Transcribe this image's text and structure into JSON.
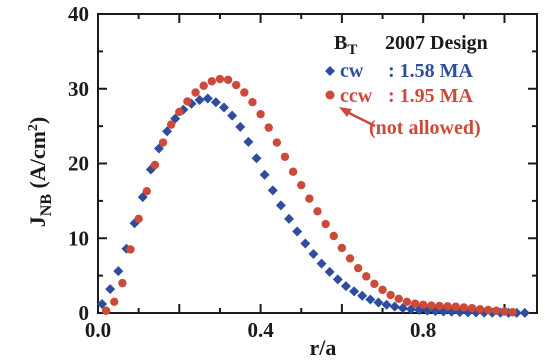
{
  "chart_data": {
    "type": "scatter",
    "xlabel": "r/a",
    "ylabel_main": "J",
    "ylabel_sub": "NB",
    "ylabel_units_prefix": " (A/cm",
    "ylabel_units_exp": "2",
    "ylabel_units_suffix": ")",
    "xlim": [
      0.0,
      1.08
    ],
    "ylim": [
      0,
      40
    ],
    "xticks": [
      "0.0",
      "0.4",
      "0.8"
    ],
    "yticks": [
      "0",
      "10",
      "20",
      "30",
      "40"
    ],
    "legend": {
      "field_main": "B",
      "field_sub": "T",
      "design": "2007 Design",
      "cw_label": "cw",
      "cw_value": ":  1.58 MA",
      "ccw_label": "ccw",
      "ccw_value": ":  1.95 MA"
    },
    "annotation": "(not allowed)",
    "series": [
      {
        "name": "cw",
        "color": "#2e4d9e",
        "marker": "diamond",
        "x": [
          0.01,
          0.03,
          0.05,
          0.07,
          0.09,
          0.11,
          0.13,
          0.15,
          0.17,
          0.19,
          0.21,
          0.23,
          0.25,
          0.27,
          0.29,
          0.31,
          0.33,
          0.35,
          0.37,
          0.39,
          0.41,
          0.43,
          0.45,
          0.47,
          0.49,
          0.51,
          0.53,
          0.55,
          0.57,
          0.59,
          0.61,
          0.63,
          0.65,
          0.67,
          0.69,
          0.71,
          0.73,
          0.75,
          0.77,
          0.79,
          0.81,
          0.83,
          0.85,
          0.87,
          0.89,
          0.91,
          0.93,
          0.95,
          0.97,
          0.99,
          1.01,
          1.03,
          1.05
        ],
        "y": [
          1.2,
          3.2,
          5.6,
          8.6,
          12.0,
          15.5,
          19.2,
          22.0,
          24.3,
          26.0,
          27.2,
          28.0,
          28.5,
          28.7,
          28.2,
          27.5,
          26.4,
          24.9,
          22.9,
          20.7,
          18.5,
          16.4,
          14.4,
          12.6,
          10.9,
          9.3,
          7.9,
          6.6,
          5.5,
          4.5,
          3.6,
          2.9,
          2.3,
          1.8,
          1.4,
          1.1,
          0.85,
          0.65,
          0.5,
          0.4,
          0.32,
          0.26,
          0.2,
          0.16,
          0.12,
          0.09,
          0.07,
          0.05,
          0.04,
          0.03,
          0.02,
          0.01,
          0.01
        ]
      },
      {
        "name": "ccw",
        "color": "#cc4a3a",
        "marker": "circle",
        "x": [
          0.02,
          0.04,
          0.06,
          0.08,
          0.1,
          0.12,
          0.14,
          0.16,
          0.18,
          0.2,
          0.22,
          0.24,
          0.26,
          0.28,
          0.3,
          0.32,
          0.34,
          0.36,
          0.38,
          0.4,
          0.42,
          0.44,
          0.46,
          0.48,
          0.5,
          0.52,
          0.54,
          0.56,
          0.58,
          0.6,
          0.62,
          0.64,
          0.66,
          0.68,
          0.7,
          0.72,
          0.74,
          0.76,
          0.78,
          0.8,
          0.82,
          0.84,
          0.86,
          0.88,
          0.9,
          0.92,
          0.94,
          0.96,
          0.98,
          1.0,
          1.02
        ],
        "y": [
          0.3,
          1.5,
          4.0,
          8.5,
          12.6,
          16.3,
          19.8,
          22.8,
          25.2,
          26.9,
          28.3,
          29.5,
          30.4,
          31.0,
          31.3,
          31.2,
          30.5,
          29.5,
          28.2,
          26.6,
          24.8,
          22.8,
          20.9,
          18.9,
          17.1,
          15.3,
          13.6,
          11.9,
          10.3,
          8.7,
          7.3,
          6.0,
          4.9,
          3.9,
          3.1,
          2.4,
          1.9,
          1.5,
          1.25,
          1.1,
          1.0,
          0.95,
          0.9,
          0.85,
          0.75,
          0.65,
          0.5,
          0.4,
          0.3,
          0.2,
          0.1
        ]
      }
    ]
  }
}
